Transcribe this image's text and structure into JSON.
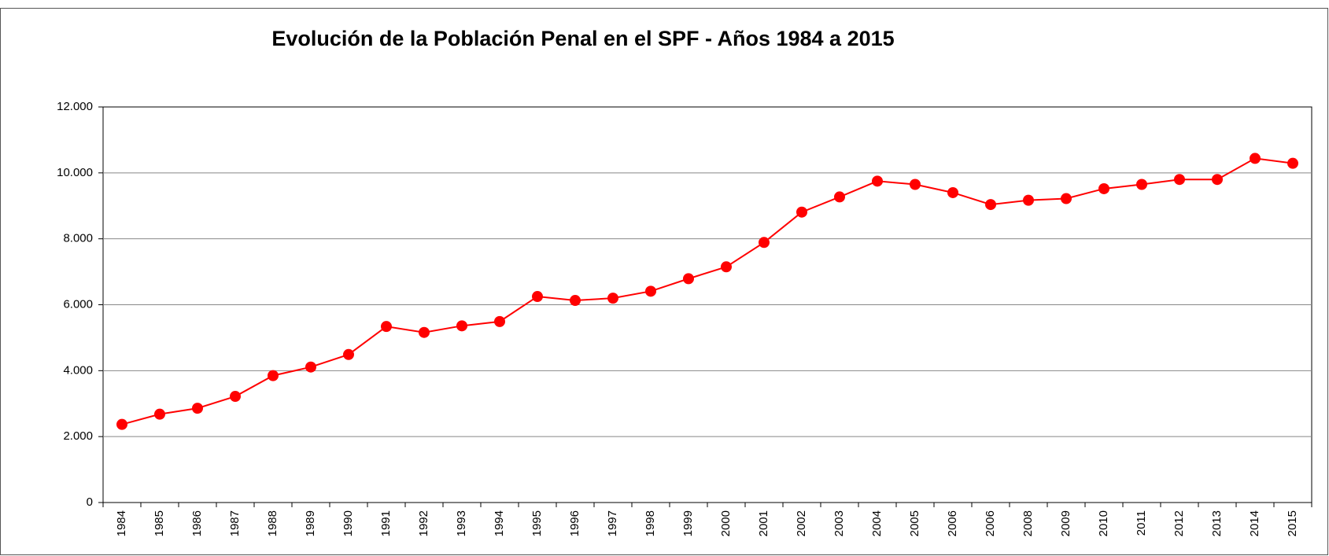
{
  "chart_data": {
    "type": "line",
    "title": "Evolución de la Población Penal en el SPF - Años 1984 a 2015",
    "categories": [
      "1984",
      "1985",
      "1986",
      "1987",
      "1988",
      "1989",
      "1990",
      "1991",
      "1992",
      "1993",
      "1994",
      "1995",
      "1996",
      "1997",
      "1998",
      "1999",
      "2000",
      "2001",
      "2002",
      "2003",
      "2004",
      "2005",
      "2006",
      "2006",
      "2008",
      "2009",
      "2010",
      "2011",
      "2012",
      "2013",
      "2014",
      "2015"
    ],
    "series": [
      {
        "color": "#ff0000",
        "values": [
          2370,
          2680,
          2860,
          3220,
          3850,
          4110,
          4490,
          5340,
          5160,
          5360,
          5490,
          6250,
          6130,
          6200,
          6410,
          6790,
          7150,
          7890,
          8810,
          9270,
          9750,
          9650,
          9400,
          9040,
          9170,
          9220,
          9520,
          9650,
          9800,
          9800,
          10440,
          10290
        ]
      }
    ],
    "ylim": [
      0,
      12000
    ],
    "yticks": [
      0,
      {
        "value": 2000,
        "label": "2.000"
      },
      {
        "value": 4000,
        "label": "4.000"
      },
      {
        "value": 6000,
        "label": "6.000"
      },
      {
        "value": 8000,
        "label": "8.000"
      },
      {
        "value": 10000,
        "label": "10.000"
      },
      {
        "value": 12000,
        "label": "12.000"
      }
    ],
    "grid": true
  }
}
